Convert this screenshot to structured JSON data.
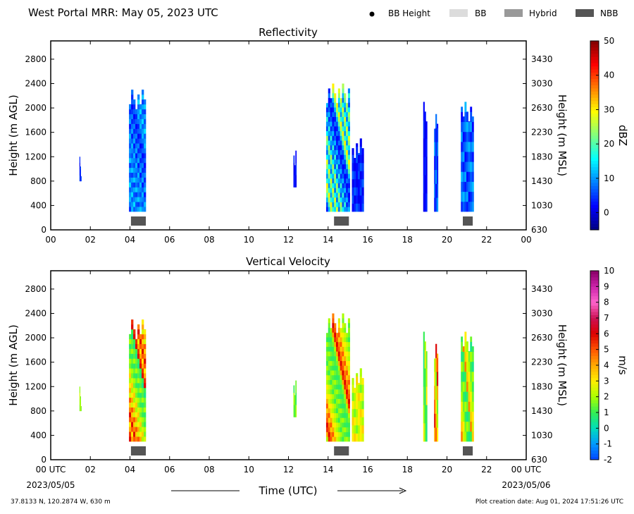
{
  "header": {
    "title": "West Portal MRR:  May 05, 2023 UTC",
    "legend": [
      {
        "label": "BB Height",
        "kind": "dot",
        "color": "#000000"
      },
      {
        "label": "BB",
        "kind": "swatch",
        "color": "#dcdcdc"
      },
      {
        "label": "Hybrid",
        "kind": "swatch",
        "color": "#999999"
      },
      {
        "label": "NBB",
        "kind": "swatch",
        "color": "#555555"
      }
    ]
  },
  "footer": {
    "location": "37.8133 N, 120.2874 W, 630 m",
    "created": "Plot creation date: Aug 01, 2024 17:51:26 UTC",
    "xlabel": "Time (UTC)",
    "date_start": "2023/05/05",
    "date_end": "2023/05/06"
  },
  "chart_data": [
    {
      "type": "heatmap",
      "title": "Reflectivity",
      "ylabel": "Height (m AGL)",
      "y2label": "Height (m MSL)",
      "colorbar_label": "dBZ",
      "xlim": [
        0,
        24
      ],
      "ylim": [
        0,
        3100
      ],
      "x_ticks": [
        "00",
        "02",
        "04",
        "06",
        "08",
        "10",
        "12",
        "14",
        "16",
        "18",
        "20",
        "22",
        "00"
      ],
      "y_ticks": [
        0,
        400,
        800,
        1200,
        1600,
        2000,
        2400,
        2800
      ],
      "y2_ticks": [
        630,
        1030,
        1430,
        1830,
        2230,
        2630,
        3030,
        3430
      ],
      "colorbar": {
        "min": -5,
        "max": 50,
        "ticks": [
          0,
          10,
          20,
          30,
          40,
          50
        ],
        "stops": [
          [
            0,
            "#00007f"
          ],
          [
            0.125,
            "#0000ff"
          ],
          [
            0.375,
            "#00ffff"
          ],
          [
            0.5,
            "#7fff7f"
          ],
          [
            0.625,
            "#ffff00"
          ],
          [
            0.875,
            "#ff0000"
          ],
          [
            1,
            "#7f0000"
          ]
        ]
      },
      "cells": [
        {
          "t0": 1.45,
          "t1": 1.55,
          "h0": 800,
          "h1": 1200,
          "values": [
            6,
            3,
            1,
            4
          ]
        },
        {
          "t0": 3.95,
          "t1": 4.8,
          "h0": 300,
          "h1": 2300,
          "values": [
            4,
            8,
            12,
            10,
            7,
            14,
            9,
            6,
            11,
            5,
            13,
            8,
            10,
            6,
            9,
            12,
            7,
            3,
            11,
            8,
            4,
            9,
            5,
            2,
            7
          ]
        },
        {
          "t0": 12.25,
          "t1": 12.4,
          "h0": 700,
          "h1": 1300,
          "values": [
            2,
            1,
            4
          ]
        },
        {
          "t0": 13.9,
          "t1": 15.1,
          "h0": 300,
          "h1": 2400,
          "values": [
            3,
            6,
            12,
            20,
            26,
            30,
            18,
            10,
            14,
            24,
            28,
            16,
            8,
            12,
            22,
            25,
            15,
            6,
            10,
            18,
            9,
            4,
            12,
            7,
            3,
            2,
            8
          ]
        },
        {
          "t0": 15.2,
          "t1": 15.8,
          "h0": 300,
          "h1": 1500,
          "values": [
            2,
            6,
            4,
            1,
            7,
            3,
            5,
            1,
            2
          ]
        },
        {
          "t0": 18.8,
          "t1": 19.0,
          "h0": 300,
          "h1": 2100,
          "values": [
            1,
            3,
            2,
            1,
            4,
            2
          ]
        },
        {
          "t0": 19.35,
          "t1": 19.55,
          "h0": 300,
          "h1": 1900,
          "values": [
            3,
            8,
            5,
            2,
            10,
            6,
            4
          ]
        },
        {
          "t0": 20.7,
          "t1": 21.35,
          "h0": 300,
          "h1": 2100,
          "values": [
            4,
            10,
            7,
            12,
            5,
            9,
            3,
            11,
            6,
            2,
            8
          ]
        }
      ],
      "bb_markers": [
        {
          "t0": 4.05,
          "t1": 4.8,
          "label": "NBB"
        },
        {
          "t0": 14.3,
          "t1": 15.05,
          "label": "NBB"
        },
        {
          "t0": 20.8,
          "t1": 21.3,
          "label": "NBB"
        }
      ]
    },
    {
      "type": "heatmap",
      "title": "Vertical Velocity",
      "ylabel": "Height (m AGL)",
      "y2label": "Height (m MSL)",
      "colorbar_label": "m/s",
      "xlim": [
        0,
        24
      ],
      "ylim": [
        0,
        3100
      ],
      "x_ticks": [
        "00 UTC",
        "02",
        "04",
        "06",
        "08",
        "10",
        "12",
        "14",
        "16",
        "18",
        "20",
        "22",
        "00 UTC"
      ],
      "y_ticks": [
        0,
        400,
        800,
        1200,
        1600,
        2000,
        2400,
        2800
      ],
      "y2_ticks": [
        630,
        1030,
        1430,
        1830,
        2230,
        2630,
        3030,
        3430
      ],
      "colorbar": {
        "min": -2,
        "max": 10,
        "ticks": [
          -2,
          -1,
          0,
          1,
          2,
          3,
          4,
          5,
          6,
          7,
          8,
          9,
          10
        ],
        "stops": [
          [
            0,
            "#0044ff"
          ],
          [
            0.083,
            "#0099ff"
          ],
          [
            0.167,
            "#00ddbb"
          ],
          [
            0.25,
            "#33ee55"
          ],
          [
            0.333,
            "#aaff00"
          ],
          [
            0.417,
            "#ffee00"
          ],
          [
            0.5,
            "#ffaa00"
          ],
          [
            0.583,
            "#ff5500"
          ],
          [
            0.667,
            "#dd0000"
          ],
          [
            0.75,
            "#cc1155"
          ],
          [
            0.833,
            "#ff66cc"
          ],
          [
            0.917,
            "#cc22aa"
          ],
          [
            1,
            "#880066"
          ]
        ]
      },
      "cells": [
        {
          "t0": 1.45,
          "t1": 1.55,
          "h0": 800,
          "h1": 1200,
          "values": [
            1.5,
            2,
            2.5,
            1.8
          ]
        },
        {
          "t0": 3.95,
          "t1": 4.8,
          "h0": 300,
          "h1": 2300,
          "values": [
            6,
            5.5,
            4,
            3,
            5,
            6,
            4.5,
            3.5,
            5,
            2.5,
            4,
            3,
            2,
            3.5,
            2.5,
            1.5,
            2,
            1,
            1.5,
            0.8,
            2,
            1.2,
            1.5,
            0.5,
            1
          ]
        },
        {
          "t0": 12.25,
          "t1": 12.4,
          "h0": 700,
          "h1": 1300,
          "values": [
            1.5,
            2,
            1
          ]
        },
        {
          "t0": 13.9,
          "t1": 15.1,
          "h0": 300,
          "h1": 2400,
          "values": [
            2,
            4,
            5.5,
            6,
            5,
            4.5,
            3.5,
            5,
            4,
            3,
            2.5,
            3,
            2,
            2.5,
            1.5,
            2,
            1,
            1.5,
            1.8,
            1.2,
            2,
            1,
            1.5,
            0.8,
            1.2,
            1,
            1.5
          ]
        },
        {
          "t0": 15.2,
          "t1": 15.8,
          "h0": 300,
          "h1": 1500,
          "values": [
            3,
            2.5,
            3.5,
            2,
            3,
            1.5,
            2.5,
            2,
            3
          ]
        },
        {
          "t0": 18.8,
          "t1": 19.0,
          "h0": 300,
          "h1": 2100,
          "values": [
            3,
            2,
            1.5,
            1,
            0.5,
            1
          ]
        },
        {
          "t0": 19.35,
          "t1": 19.55,
          "h0": 300,
          "h1": 1900,
          "values": [
            4,
            6,
            5,
            4,
            3,
            2,
            1.5
          ]
        },
        {
          "t0": 20.7,
          "t1": 21.35,
          "h0": 300,
          "h1": 2100,
          "values": [
            4.5,
            3.5,
            2.5,
            3,
            2,
            1.5,
            1,
            2,
            0.5,
            1.5,
            1
          ]
        }
      ],
      "bb_markers": [
        {
          "t0": 4.05,
          "t1": 4.8,
          "label": "NBB"
        },
        {
          "t0": 14.3,
          "t1": 15.05,
          "label": "NBB"
        },
        {
          "t0": 20.8,
          "t1": 21.3,
          "label": "NBB"
        }
      ]
    }
  ]
}
